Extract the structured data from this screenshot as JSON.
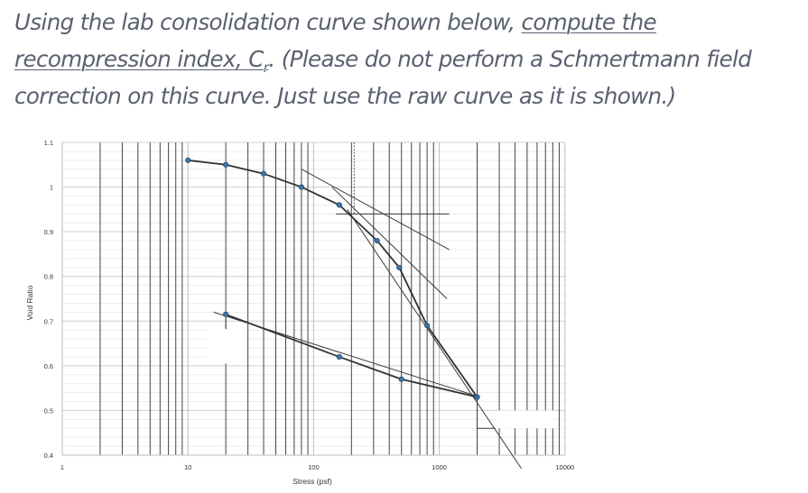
{
  "question": {
    "part1": "Using the lab consolidation curve shown below, ",
    "part2_underlined": "compute the recompression index, C",
    "part2_sub": "r",
    "part3": ". (Please do not perform a Schmertmann field correction on this curve. Just use the raw curve as it is shown.)"
  },
  "chart_data": {
    "type": "line",
    "xscale": "log",
    "xlabel": "Stress (psf)",
    "ylabel": "Void Ratio",
    "xlim": [
      1,
      10000
    ],
    "ylim": [
      0.4,
      1.1
    ],
    "x_ticks": [
      "1",
      "10",
      "100",
      "1000",
      "10000"
    ],
    "y_ticks": [
      "0.4",
      "0.5",
      "0.6",
      "0.7",
      "0.8",
      "0.9",
      "1",
      "1.1"
    ],
    "grid": true,
    "series": [
      {
        "points": [
          [
            10,
            1.06
          ],
          [
            20,
            1.05
          ],
          [
            40,
            1.03
          ],
          [
            80,
            1.0
          ],
          [
            160,
            0.96
          ],
          [
            320,
            0.88
          ],
          [
            480,
            0.82
          ],
          [
            800,
            0.69
          ],
          [
            2000,
            0.53
          ]
        ],
        "color": "#333333",
        "marker_color": "#3a74a8"
      },
      {
        "points": [
          [
            2000,
            0.53
          ],
          [
            500,
            0.57
          ],
          [
            160,
            0.62
          ],
          [
            20,
            0.715
          ]
        ],
        "color": "#333333",
        "marker_color": "#3a74a8"
      }
    ],
    "construction_lines": [
      {
        "from": [
          80,
          1.04
        ],
        "to": [
          1200,
          0.86
        ]
      },
      {
        "from": [
          140,
          1.0
        ],
        "to": [
          1150,
          0.75
        ]
      },
      {
        "from": [
          150,
          0.94
        ],
        "to": [
          1200,
          0.94
        ]
      },
      {
        "from": [
          210,
          1.1
        ],
        "to": [
          210,
          0.94
        ],
        "dashed": true
      },
      {
        "from": [
          185,
          0.95
        ],
        "to": [
          4500,
          0.37
        ]
      },
      {
        "from": [
          16,
          0.72
        ],
        "to": [
          2100,
          0.53
        ]
      },
      {
        "from": [
          20,
          0.707
        ],
        "to": [
          20,
          0.67
        ]
      },
      {
        "from": [
          20,
          0.67
        ],
        "to": [
          28,
          0.67
        ]
      },
      {
        "from": [
          2000,
          0.53
        ],
        "to": [
          2000,
          0.46
        ]
      },
      {
        "from": [
          2000,
          0.46
        ],
        "to": [
          2800,
          0.46
        ]
      }
    ]
  }
}
